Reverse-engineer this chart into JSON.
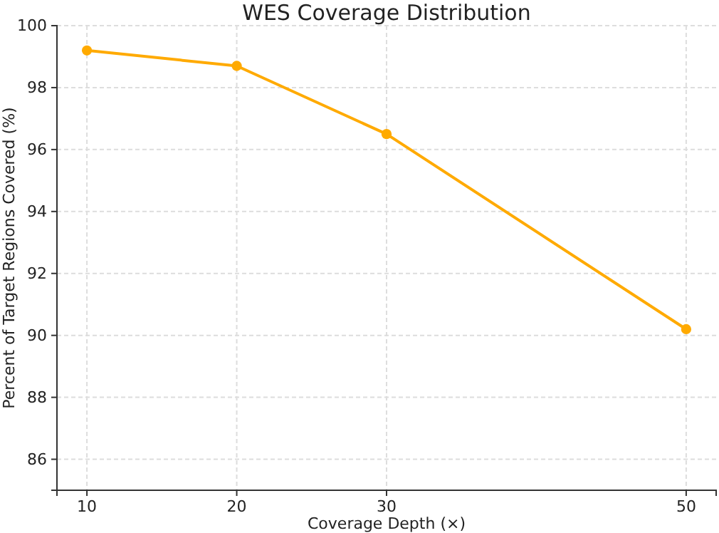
{
  "chart_data": {
    "type": "line",
    "title": "WES Coverage Distribution",
    "xlabel": "Coverage Depth (×)",
    "ylabel": "Percent of Target Regions Covered (%)",
    "x": [
      10,
      20,
      30,
      50
    ],
    "series": [
      {
        "color": "#ffaa00",
        "values": [
          99.2,
          98.7,
          96.5,
          90.2
        ]
      }
    ],
    "xlim": [
      8,
      52
    ],
    "xticks": [
      10,
      20,
      30,
      50
    ],
    "ylim": [
      85,
      100
    ],
    "yticks": [
      86,
      88,
      90,
      92,
      94,
      96,
      98,
      100
    ],
    "grid": true,
    "marker": "circle",
    "line_style": "solid"
  }
}
